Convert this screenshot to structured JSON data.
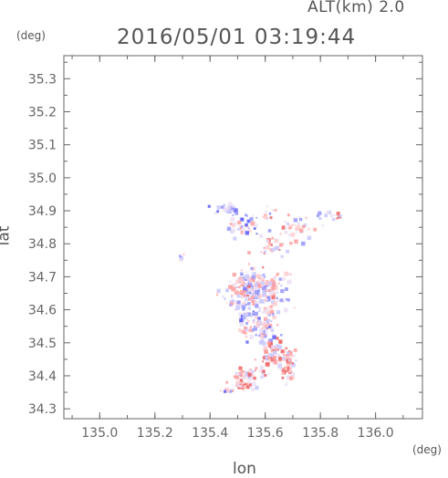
{
  "header": {
    "altitude_label": "ALT(km) 2.0",
    "timestamp": "2016/05/01 03:19:44"
  },
  "chart_data": {
    "type": "scatter",
    "title": "2016/05/01 03:19:44",
    "subtitle": "ALT(km) 2.0",
    "xlabel": "lon",
    "ylabel": "lat",
    "x_unit": "(deg)",
    "y_unit": "(deg)",
    "xlim": [
      134.87,
      136.17
    ],
    "ylim": [
      34.27,
      35.37
    ],
    "x_ticks": [
      "135.0",
      "135.2",
      "135.4",
      "135.6",
      "135.8",
      "136.0"
    ],
    "x_tick_values": [
      135.0,
      135.2,
      135.4,
      135.6,
      135.8,
      136.0
    ],
    "y_ticks": [
      "34.3",
      "34.4",
      "34.5",
      "34.6",
      "34.7",
      "34.8",
      "34.9",
      "35.0",
      "35.1",
      "35.2",
      "35.3"
    ],
    "y_tick_values": [
      34.3,
      34.4,
      34.5,
      34.6,
      34.7,
      34.8,
      34.9,
      35.0,
      35.1,
      35.2,
      35.3
    ],
    "colors": {
      "blue": "#7b7bff",
      "red": "#ff7b7b",
      "light_blue": "#c8c8ff",
      "light_red": "#ffc8c8",
      "axis": "#666666"
    },
    "clusters": [
      {
        "lon": 135.46,
        "lat": 34.905,
        "spread": [
          0.04,
          0.015
        ],
        "n": 30,
        "bias": -0.4
      },
      {
        "lon": 135.61,
        "lat": 34.895,
        "spread": [
          0.02,
          0.015
        ],
        "n": 10,
        "bias": 0.2
      },
      {
        "lon": 135.52,
        "lat": 34.855,
        "spread": [
          0.05,
          0.03
        ],
        "n": 40,
        "bias": -0.2
      },
      {
        "lon": 135.72,
        "lat": 34.84,
        "spread": [
          0.06,
          0.04
        ],
        "n": 40,
        "bias": 0.1
      },
      {
        "lon": 135.84,
        "lat": 34.885,
        "spread": [
          0.04,
          0.01
        ],
        "n": 15,
        "bias": 0.2
      },
      {
        "lon": 135.62,
        "lat": 34.79,
        "spread": [
          0.05,
          0.03
        ],
        "n": 30,
        "bias": 0.3
      },
      {
        "lon": 135.3,
        "lat": 34.76,
        "spread": [
          0.01,
          0.01
        ],
        "n": 4,
        "bias": -0.5
      },
      {
        "lon": 135.56,
        "lat": 34.66,
        "spread": [
          0.09,
          0.05
        ],
        "n": 260,
        "bias": 0.0
      },
      {
        "lon": 135.58,
        "lat": 34.55,
        "spread": [
          0.06,
          0.04
        ],
        "n": 110,
        "bias": -0.1
      },
      {
        "lon": 135.63,
        "lat": 34.47,
        "spread": [
          0.04,
          0.04
        ],
        "n": 80,
        "bias": 0.4
      },
      {
        "lon": 135.69,
        "lat": 34.43,
        "spread": [
          0.02,
          0.04
        ],
        "n": 40,
        "bias": 0.6
      },
      {
        "lon": 135.55,
        "lat": 34.405,
        "spread": [
          0.05,
          0.015
        ],
        "n": 45,
        "bias": 0.3
      },
      {
        "lon": 135.52,
        "lat": 34.37,
        "spread": [
          0.04,
          0.01
        ],
        "n": 40,
        "bias": 0.6
      },
      {
        "lon": 135.46,
        "lat": 34.355,
        "spread": [
          0.02,
          0.005
        ],
        "n": 10,
        "bias": -0.4
      }
    ]
  }
}
